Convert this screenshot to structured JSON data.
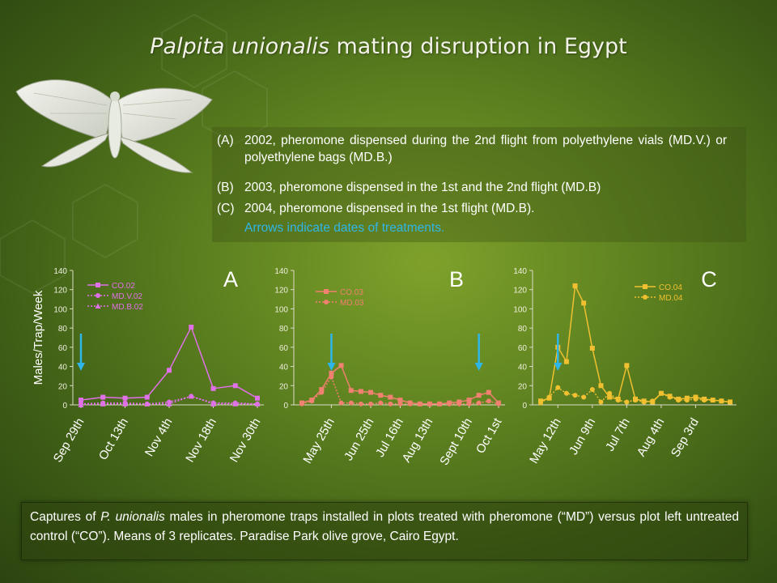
{
  "title": {
    "species": "Palpita unionalis",
    "rest": " mating disruption in Egypt"
  },
  "description": {
    "items": [
      {
        "label": "(A)",
        "text": "2002, pheromone dispensed during the 2nd flight from polyethylene vials (MD.V.) or polyethylene bags (MD.B.)"
      },
      {
        "label": "(B)",
        "text": "2003, pheromone dispensed in the 1st and the 2nd flight (MD.B)"
      },
      {
        "label": "(C)",
        "text": "2004, pheromone dispensed in the 1st flight (MD.B)."
      }
    ],
    "note": "Arrows indicate dates of treatments."
  },
  "caption": {
    "pre": "Captures of ",
    "species": "P. unionalis",
    "post": " males in pheromone traps installed in plots treated with pheromone (“MD”) versus plot left untreated control (“CO”). Means of 3 replicates. Paradise Park olive grove, Cairo Egypt."
  },
  "chart_data": [
    {
      "type": "line",
      "panel": "A",
      "ylabel": "Males/Trap/Week",
      "ylim": [
        0,
        140
      ],
      "yticks": [
        0,
        20,
        40,
        60,
        80,
        100,
        120,
        140
      ],
      "xtick_labels": [
        "Sep 29th",
        "Oct 13th",
        "Nov 4th",
        "Nov 18th",
        "Nov 30th"
      ],
      "xtick_positions": [
        0,
        2,
        4,
        6,
        8
      ],
      "arrows_at": [
        0
      ],
      "x": [
        0,
        1,
        2,
        3,
        4,
        5,
        6,
        7,
        8
      ],
      "color": "#e070e8",
      "series": [
        {
          "name": "CO.02",
          "marker": "square",
          "style": "solid",
          "values": [
            5,
            8,
            7,
            8,
            36,
            81,
            17,
            20,
            7
          ]
        },
        {
          "name": "MD.V.02",
          "marker": "circle",
          "style": "dotted",
          "values": [
            1,
            2,
            2,
            1,
            3,
            9,
            2,
            2,
            1
          ]
        },
        {
          "name": "MD.B.02",
          "marker": "triangle",
          "style": "dotted",
          "values": [
            0,
            1,
            1,
            1,
            1,
            9,
            1,
            1,
            1
          ]
        }
      ],
      "legend_position": "top-left"
    },
    {
      "type": "line",
      "panel": "B",
      "ylim": [
        0,
        140
      ],
      "yticks": [
        0,
        20,
        40,
        60,
        80,
        100,
        120,
        140
      ],
      "xtick_labels": [
        "May 25th",
        "Jun 25th",
        "Jul 16th",
        "Aug 13th",
        "Sept 10th",
        "Oct 1st"
      ],
      "xtick_positions": [
        3,
        7,
        10,
        13,
        17,
        20
      ],
      "arrows_at": [
        3,
        18
      ],
      "x": [
        0,
        1,
        2,
        3,
        4,
        5,
        6,
        7,
        8,
        9,
        10,
        11,
        12,
        13,
        14,
        15,
        16,
        17,
        18,
        19,
        20
      ],
      "color": "#f08070",
      "series": [
        {
          "name": "CO.03",
          "marker": "square",
          "style": "solid",
          "values": [
            2,
            5,
            16,
            33,
            41,
            15,
            14,
            13,
            10,
            8,
            5,
            2,
            1,
            1,
            1,
            2,
            3,
            5,
            10,
            13,
            2
          ]
        },
        {
          "name": "MD.03",
          "marker": "circle",
          "style": "dotted",
          "values": [
            1,
            4,
            13,
            29,
            2,
            2,
            1,
            1,
            2,
            1,
            1,
            1,
            1,
            1,
            1,
            1,
            1,
            1,
            2,
            4,
            1
          ]
        }
      ],
      "legend_position": "top-left"
    },
    {
      "type": "line",
      "panel": "C",
      "ylim": [
        0,
        140
      ],
      "yticks": [
        0,
        20,
        40,
        60,
        80,
        100,
        120,
        140
      ],
      "xtick_labels": [
        "May 12th",
        "Jun 9th",
        "Jul 7th",
        "Aug 4th",
        "Sep 3rd"
      ],
      "xtick_positions": [
        2,
        6,
        10,
        14,
        18
      ],
      "arrows_at": [
        2
      ],
      "x": [
        0,
        1,
        2,
        3,
        4,
        5,
        6,
        7,
        8,
        9,
        10,
        11,
        12,
        13,
        14,
        15,
        16,
        17,
        18,
        19,
        20,
        21,
        22
      ],
      "color": "#f0c030",
      "series": [
        {
          "name": "CO.04",
          "marker": "square",
          "style": "solid",
          "values": [
            4,
            7,
            60,
            45,
            124,
            106,
            59,
            20,
            8,
            6,
            41,
            6,
            4,
            3,
            12,
            9,
            6,
            7,
            8,
            6,
            5,
            4,
            3
          ]
        },
        {
          "name": "MD.04",
          "marker": "circle",
          "style": "dotted",
          "values": [
            2,
            8,
            18,
            12,
            10,
            8,
            16,
            3,
            12,
            5,
            3,
            5,
            3,
            4,
            12,
            8,
            5,
            5,
            6,
            5,
            5,
            4,
            3
          ]
        }
      ],
      "legend_position": "top-right"
    }
  ]
}
